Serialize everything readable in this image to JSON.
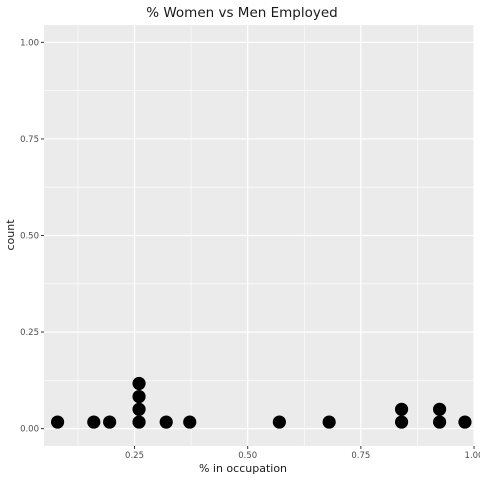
{
  "chart_data": {
    "type": "scatter",
    "title": "% Women vs Men Employed",
    "xlabel": "% in occupation",
    "ylabel": "count",
    "xlim": [
      0.05,
      1.0
    ],
    "ylim": [
      0.0,
      1.0
    ],
    "x_ticks": [
      0.25,
      0.5,
      0.75,
      1.0
    ],
    "x_tick_labels": [
      "0.25",
      "0.50",
      "0.75",
      "1.00"
    ],
    "y_ticks": [
      0.0,
      0.25,
      0.5,
      0.75,
      1.0
    ],
    "y_tick_labels": [
      "0.00",
      "0.25",
      "0.50",
      "0.75",
      "1.00"
    ],
    "grid": true,
    "panel_background": "#ebebeb",
    "grid_color": "#ffffff",
    "point_color": "#000000",
    "points": [
      {
        "x": 0.08,
        "y": 0.017
      },
      {
        "x": 0.16,
        "y": 0.017
      },
      {
        "x": 0.195,
        "y": 0.017
      },
      {
        "x": 0.26,
        "y": 0.017
      },
      {
        "x": 0.26,
        "y": 0.05
      },
      {
        "x": 0.26,
        "y": 0.083
      },
      {
        "x": 0.26,
        "y": 0.117
      },
      {
        "x": 0.32,
        "y": 0.017
      },
      {
        "x": 0.372,
        "y": 0.017
      },
      {
        "x": 0.57,
        "y": 0.017
      },
      {
        "x": 0.68,
        "y": 0.017
      },
      {
        "x": 0.84,
        "y": 0.017
      },
      {
        "x": 0.84,
        "y": 0.05
      },
      {
        "x": 0.924,
        "y": 0.017
      },
      {
        "x": 0.924,
        "y": 0.05
      },
      {
        "x": 0.98,
        "y": 0.017
      }
    ]
  }
}
